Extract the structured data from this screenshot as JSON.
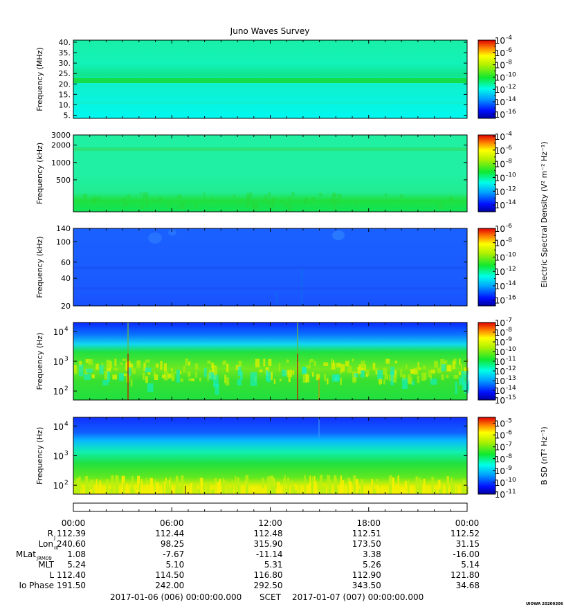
{
  "title": "Juno Waves Survey",
  "footer_stamp": "UIOWA 20200306",
  "colors": {
    "background": "#00ffe0",
    "accent_green": "#1ee04a",
    "blue": "#1a5cff",
    "deep_blue": "#0a28ff"
  },
  "chart_data": [
    {
      "type": "heatmap",
      "name": "hfr-high",
      "ylabel": "Frequency (MHz)",
      "yticks": [
        "40.",
        "35.",
        "30.",
        "25.",
        "20.",
        "15.",
        "10.",
        "5."
      ],
      "ytick_values": [
        40,
        35,
        30,
        25,
        20,
        15,
        10,
        5
      ],
      "ylim": [
        3.5,
        41
      ],
      "yscale": "linear",
      "colorbar": {
        "exponents": [
          "-4",
          "-6",
          "-8",
          "-10",
          "-12",
          "-14",
          "-16"
        ],
        "range": [
          -16.7,
          -4
        ],
        "label": ""
      }
    },
    {
      "type": "heatmap",
      "name": "hfr-low",
      "ylabel": "Frequency (kHz)",
      "yticks": [
        "3000",
        "2000",
        "1000",
        "500"
      ],
      "ytick_values": [
        3000,
        2000,
        1000,
        500
      ],
      "ylim": [
        140,
        3000
      ],
      "yscale": "log",
      "colorbar": {
        "exponents": [
          "-4",
          "-6",
          "-8",
          "-10",
          "-12",
          "-14"
        ],
        "range": [
          -15,
          -3.8
        ],
        "label": "Electric Spectral Density (V² m⁻² Hz⁻¹)"
      }
    },
    {
      "type": "heatmap",
      "name": "lfr-high",
      "ylabel": "Frequency (kHz)",
      "yticks": [
        "140",
        "100",
        "60",
        "40",
        "20"
      ],
      "ytick_values": [
        140,
        100,
        60,
        40,
        20
      ],
      "ylim": [
        20,
        140
      ],
      "yscale": "log",
      "colorbar": {
        "exponents": [
          "-6",
          "-8",
          "-10",
          "-12",
          "-14",
          "-16"
        ],
        "range": [
          -16.8,
          -6
        ],
        "label": ""
      }
    },
    {
      "type": "heatmap",
      "name": "lfr-low",
      "ylabel": "Frequency (Hz)",
      "yticks": [
        "10",
        "10",
        "10"
      ],
      "ytick_exp": [
        "4",
        "3",
        "2"
      ],
      "ytick_values": [
        10000,
        1000,
        100
      ],
      "ylim": [
        50,
        20000
      ],
      "yscale": "log",
      "colorbar": {
        "exponents": [
          "-7",
          "-8",
          "-9",
          "-10",
          "-11",
          "-12",
          "-13",
          "-14",
          "-15"
        ],
        "range": [
          -15,
          -7
        ],
        "label": ""
      }
    },
    {
      "type": "heatmap",
      "name": "magnetic",
      "ylabel": "Frequency (Hz)",
      "yticks": [
        "10",
        "10",
        "10"
      ],
      "ytick_exp": [
        "4",
        "3",
        "2"
      ],
      "ytick_values": [
        10000,
        1000,
        100
      ],
      "ylim": [
        50,
        20000
      ],
      "yscale": "log",
      "colorbar": {
        "exponents": [
          "-5",
          "-6",
          "-7",
          "-8",
          "-9",
          "-10",
          "-11"
        ],
        "range": [
          -11,
          -4.5
        ],
        "label": "B SD (nT² Hz⁻¹)"
      }
    }
  ],
  "time_axis": {
    "ticks": [
      "00:00",
      "06:00",
      "12:00",
      "18:00",
      "00:00"
    ]
  },
  "ephemeris": {
    "labels": [
      {
        "text": "R",
        "sub": "J"
      },
      {
        "text": "Lon",
        "sub": "III"
      },
      {
        "text": "MLat",
        "sub": "JRM09"
      },
      {
        "text": "MLT",
        "sub": ""
      },
      {
        "text": "L",
        "sub": ""
      },
      {
        "text": "Io Phase",
        "sub": ""
      }
    ],
    "rows": [
      [
        "112.39",
        "112.44",
        "112.48",
        "112.51",
        "112.52"
      ],
      [
        "240.60",
        "98.25",
        "315.90",
        "173.50",
        "31.15"
      ],
      [
        "1.08",
        "-7.67",
        "-11.14",
        "3.38",
        "-16.00"
      ],
      [
        "5.24",
        "5.10",
        "5.31",
        "5.26",
        "5.14"
      ],
      [
        "112.40",
        "114.50",
        "116.80",
        "112.90",
        "121.80"
      ],
      [
        "191.50",
        "242.00",
        "292.50",
        "343.50",
        "34.68"
      ]
    ]
  },
  "scet": {
    "start": "2017-01-06 (006) 00:00:00.000",
    "label": "SCET",
    "end": "2017-01-07 (007) 00:00:00.000"
  }
}
